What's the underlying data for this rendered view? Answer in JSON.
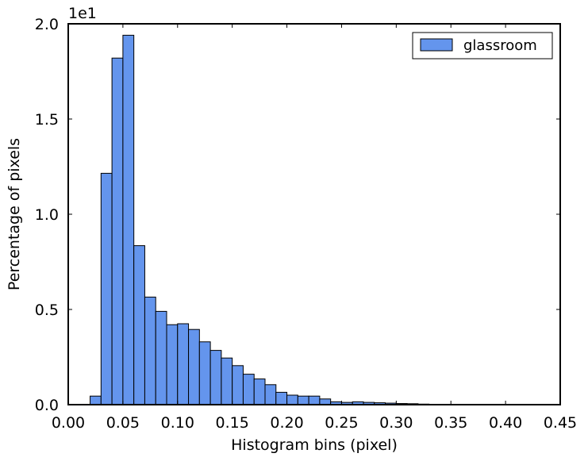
{
  "chart_data": {
    "type": "bar",
    "subtype": "histogram",
    "xlabel": "Histogram bins (pixel)",
    "ylabel": "Percentage of pixels",
    "xlim": [
      0.0,
      0.45
    ],
    "ylim": [
      0.0,
      2.0
    ],
    "y_offset_label": "1e1",
    "x_ticks": [
      "0.00",
      "0.05",
      "0.10",
      "0.15",
      "0.20",
      "0.25",
      "0.30",
      "0.35",
      "0.40",
      "0.45"
    ],
    "x_tick_values": [
      0.0,
      0.05,
      0.1,
      0.15,
      0.2,
      0.25,
      0.3,
      0.35,
      0.4,
      0.45
    ],
    "y_ticks": [
      "0.0",
      "0.5",
      "1.0",
      "1.5",
      "2.0"
    ],
    "y_tick_values": [
      0.0,
      0.5,
      1.0,
      1.5,
      2.0
    ],
    "bin_width": 0.01,
    "bin_edges": [
      0.02,
      0.03,
      0.04,
      0.05,
      0.06,
      0.07,
      0.08,
      0.09,
      0.1,
      0.11,
      0.12,
      0.13,
      0.14,
      0.15,
      0.16,
      0.17,
      0.18,
      0.19,
      0.2,
      0.21,
      0.22,
      0.23,
      0.24,
      0.25,
      0.26,
      0.27,
      0.28,
      0.29,
      0.3,
      0.31,
      0.32,
      0.33
    ],
    "series": [
      {
        "name": "glassroom",
        "color": "#6495ed",
        "values": [
          0.045,
          1.215,
          1.82,
          1.94,
          0.835,
          0.565,
          0.49,
          0.42,
          0.425,
          0.395,
          0.33,
          0.285,
          0.245,
          0.205,
          0.16,
          0.135,
          0.105,
          0.065,
          0.05,
          0.045,
          0.045,
          0.03,
          0.015,
          0.012,
          0.015,
          0.012,
          0.01,
          0.008,
          0.006,
          0.005,
          0.003
        ]
      }
    ],
    "legend": {
      "position": "top-right",
      "entries": [
        "glassroom"
      ]
    },
    "grid": false
  }
}
